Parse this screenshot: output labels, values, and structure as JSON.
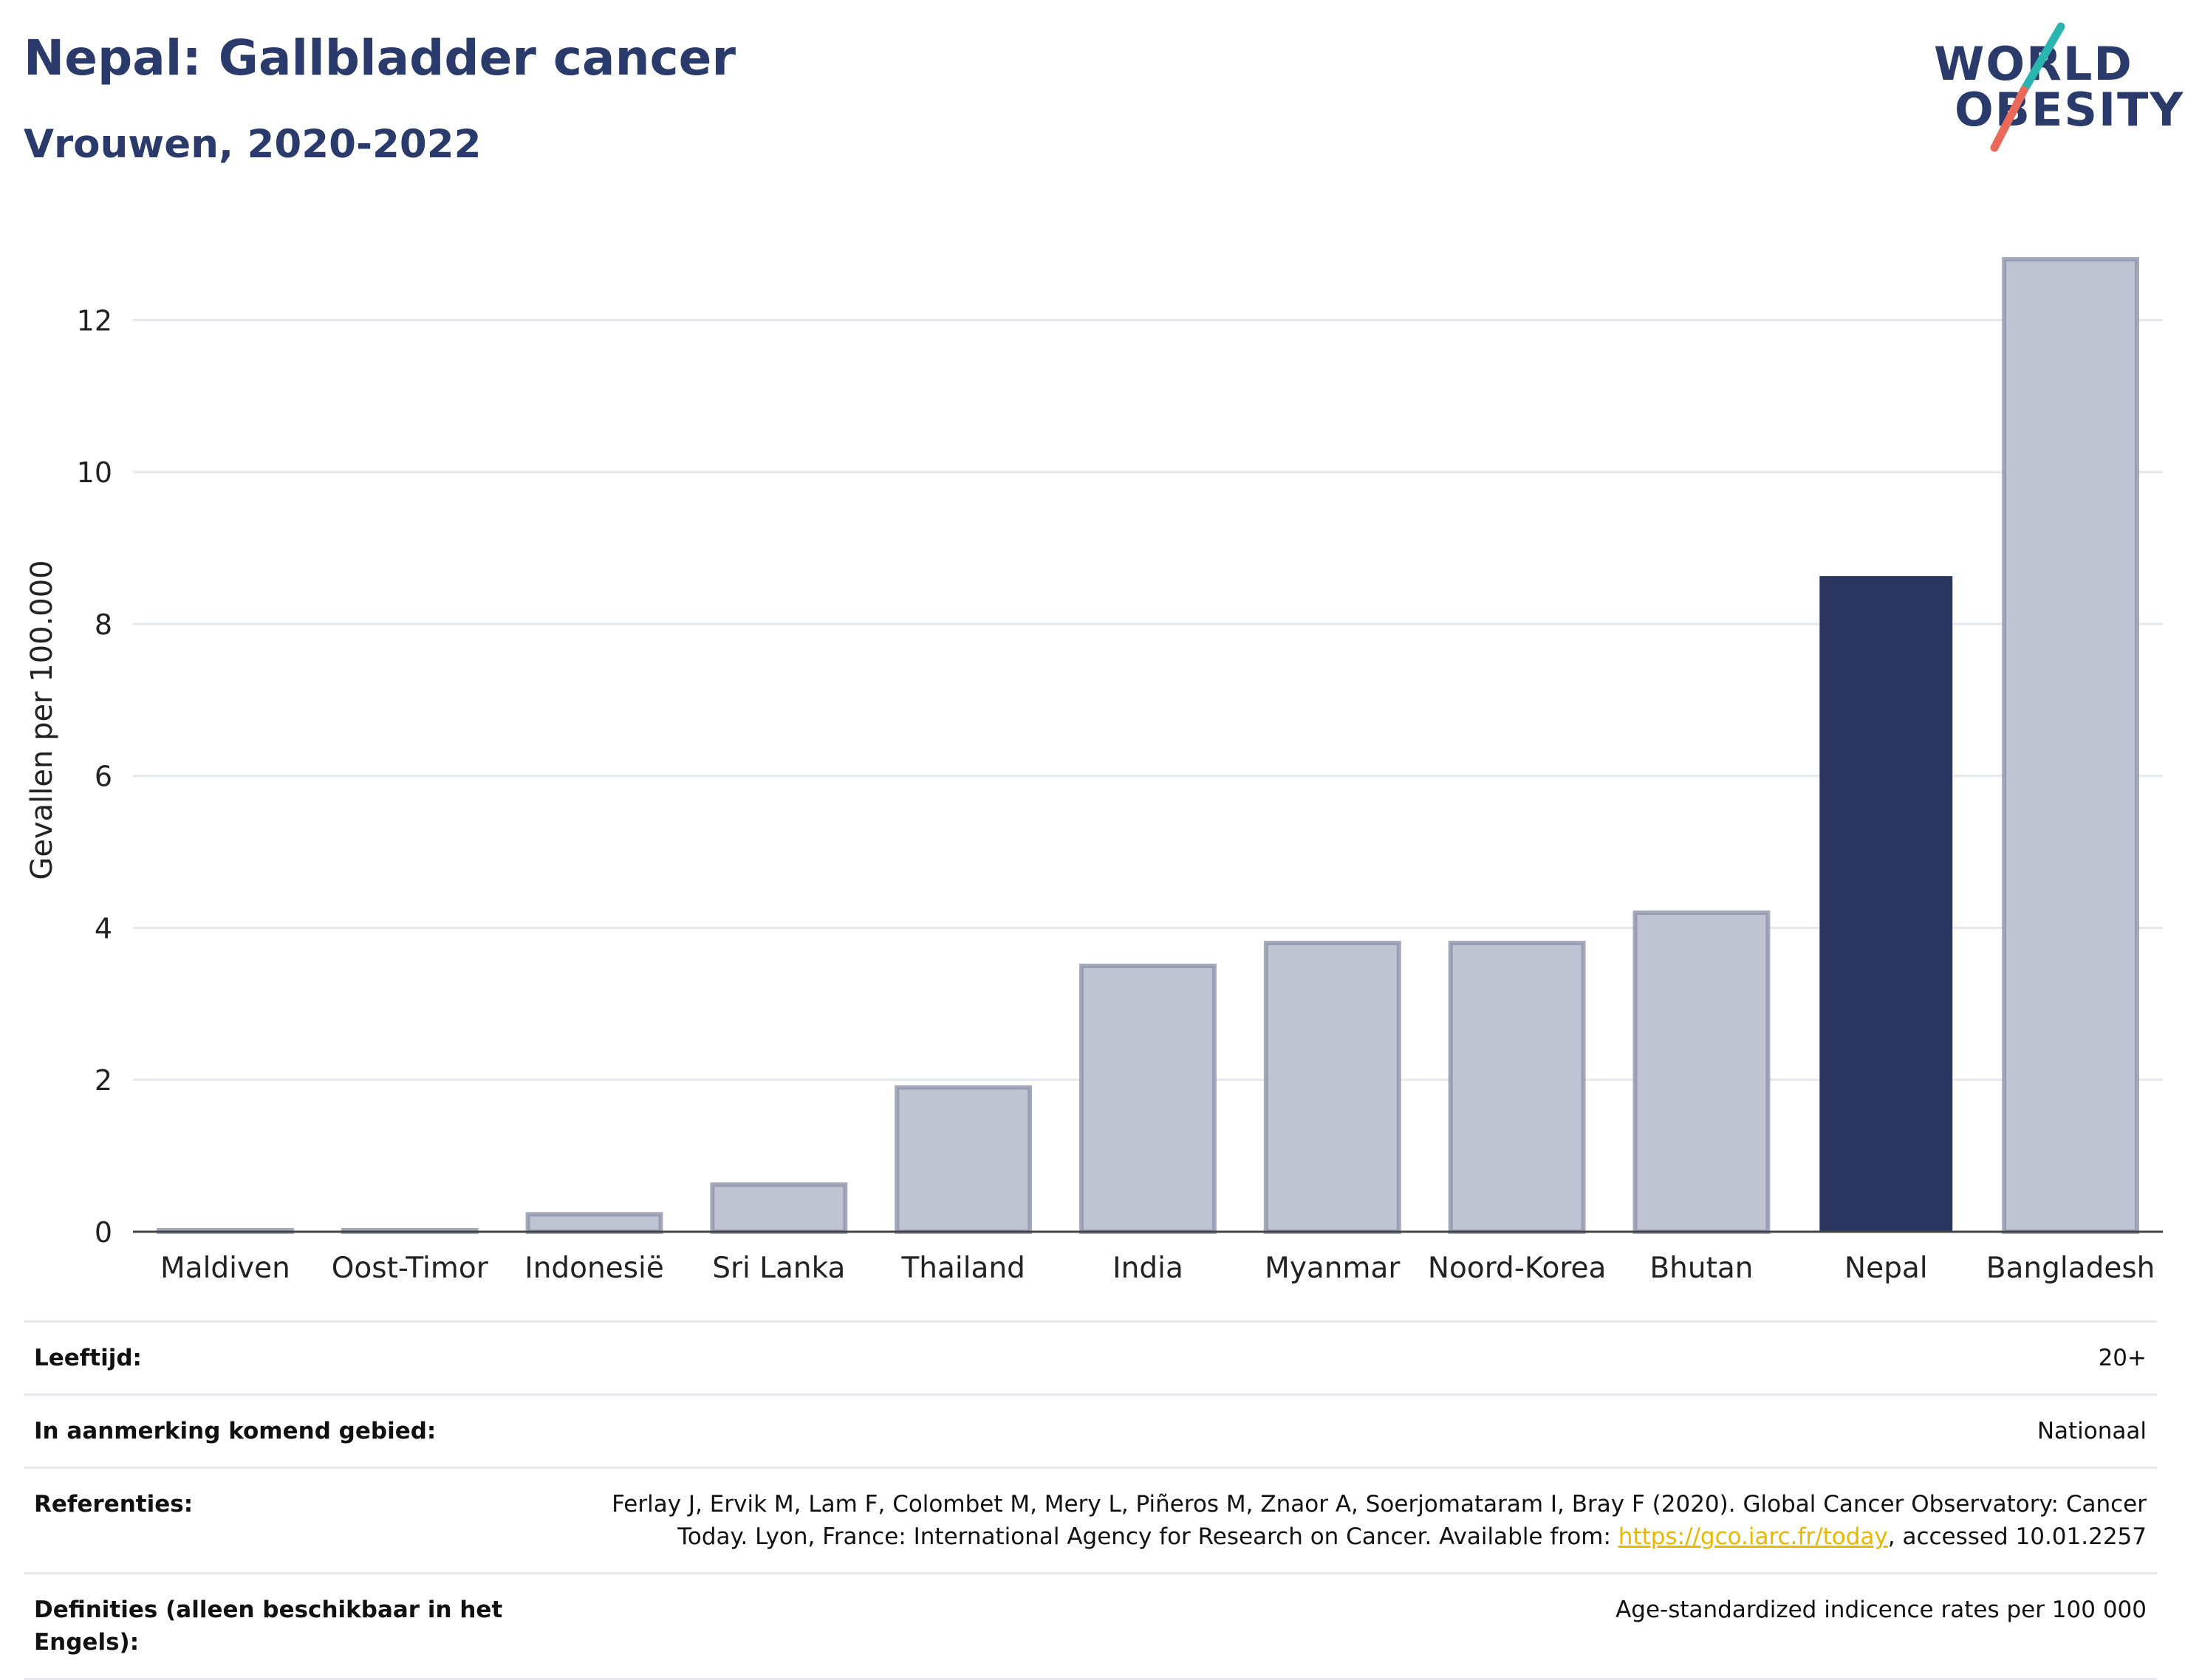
{
  "header": {
    "title": "Nepal: Gallbladder cancer",
    "subtitle": "Vrouwen, 2020-2022"
  },
  "logo": {
    "line1": "WORLD",
    "line2": "OBESITY",
    "colors": {
      "navy": "#2a3a6b",
      "teal": "#2bb5b0",
      "coral": "#e96a5b"
    }
  },
  "chart_data": {
    "type": "bar",
    "title": "Nepal: Gallbladder cancer",
    "subtitle": "Vrouwen, 2020-2022",
    "ylabel": "Gevallen per 100.000",
    "xlabel": "",
    "categories": [
      "Maldiven",
      "Oost-Timor",
      "Indonesië",
      "Sri Lanka",
      "Thailand",
      "India",
      "Myanmar",
      "Noord-Korea",
      "Bhutan",
      "Nepal",
      "Bangladesh"
    ],
    "values": [
      0.02,
      0.02,
      0.23,
      0.62,
      1.9,
      3.5,
      3.8,
      3.8,
      4.2,
      8.63,
      12.8
    ],
    "highlight": "Nepal",
    "ylim": [
      0,
      13.2
    ],
    "yticks": [
      0,
      2,
      4,
      6,
      8,
      10,
      12
    ],
    "grid": true,
    "colors": {
      "highlight": "#2a3660",
      "other_fill": "#c0c4d2",
      "other_stroke": "#8d93ab"
    }
  },
  "meta": [
    {
      "label": "Leeftijd:",
      "value": "20+"
    },
    {
      "label": "In aanmerking komend gebied:",
      "value": "Nationaal"
    },
    {
      "label": "Referenties:",
      "value_line1": "Ferlay J, Ervik M, Lam F, Colombet M, Mery L, Piñeros M, Znaor A, Soerjomataram I, Bray F (2020). Global Cancer Observatory: Cancer",
      "value_line2_pre": "Today. Lyon, France: International Agency for Research on Cancer. Available from: ",
      "link": "https://gco.iarc.fr/today",
      "value_line2_post": ", accessed 10.01.2257"
    },
    {
      "label": "Definities (alleen beschikbaar in het Engels):",
      "value": "Age-standardized indicence rates per 100 000"
    }
  ]
}
